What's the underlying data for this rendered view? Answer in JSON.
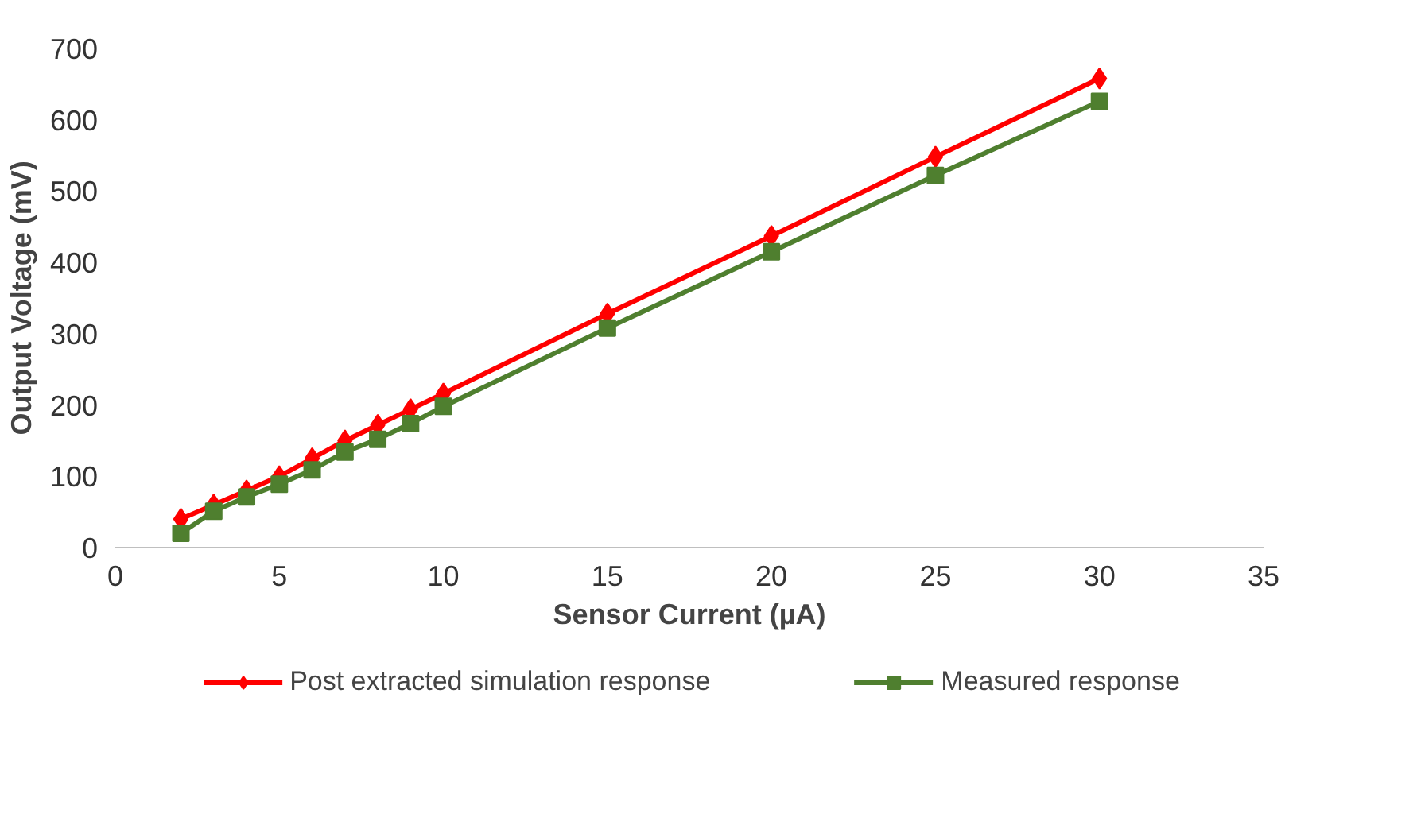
{
  "chart_data": {
    "type": "line",
    "xlabel": "Sensor Current (µA)",
    "ylabel": "Output Voltage (mV)",
    "x": [
      2,
      3,
      4,
      5,
      6,
      7,
      8,
      9,
      10,
      15,
      20,
      25,
      30
    ],
    "series": [
      {
        "name": "Post extracted simulation response",
        "color": "#ff0000",
        "marker": "diamond",
        "values": [
          40,
          60,
          80,
          100,
          125,
          150,
          172,
          194,
          216,
          328,
          437,
          548,
          658
        ]
      },
      {
        "name": "Measured response",
        "color": "#4f7f2f",
        "marker": "square",
        "values": [
          20,
          51,
          71,
          89,
          109,
          134,
          152,
          174,
          198,
          308,
          415,
          522,
          626
        ]
      }
    ],
    "xlim": [
      0,
      35
    ],
    "xticks": [
      0,
      5,
      10,
      15,
      20,
      25,
      30,
      35
    ],
    "ylim": [
      0,
      700
    ],
    "yticks": [
      0,
      100,
      200,
      300,
      400,
      500,
      600,
      700
    ],
    "grid": false,
    "legend": "bottom",
    "line_style": "solid"
  }
}
